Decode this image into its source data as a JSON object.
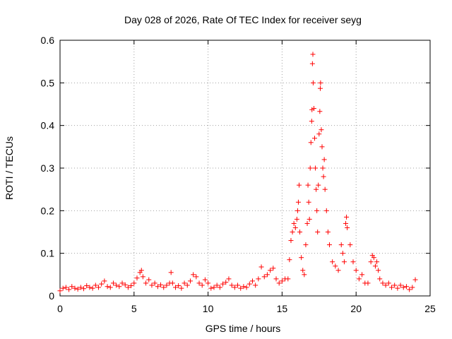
{
  "chart_data": {
    "type": "scatter",
    "title": "Day 028 of 2026, Rate Of TEC Index for receiver seyg",
    "xlabel": "GPS time / hours",
    "ylabel": "ROTI / TECUs",
    "xlim": [
      0,
      25
    ],
    "ylim": [
      0,
      0.6
    ],
    "x_ticks": [
      "0",
      "5",
      "10",
      "15",
      "20",
      "25"
    ],
    "y_ticks": [
      "0",
      "0.1",
      "0.2",
      "0.3",
      "0.4",
      "0.5",
      "0.6"
    ],
    "grid": true,
    "marker": "+",
    "color": "#ff0000",
    "series": [
      {
        "name": "ROTI",
        "points": [
          [
            0.0,
            0.012
          ],
          [
            0.2,
            0.018
          ],
          [
            0.4,
            0.02
          ],
          [
            0.6,
            0.015
          ],
          [
            0.8,
            0.022
          ],
          [
            1.0,
            0.018
          ],
          [
            1.2,
            0.016
          ],
          [
            1.4,
            0.02
          ],
          [
            1.6,
            0.017
          ],
          [
            1.8,
            0.024
          ],
          [
            2.0,
            0.02
          ],
          [
            2.2,
            0.018
          ],
          [
            2.4,
            0.025
          ],
          [
            2.6,
            0.02
          ],
          [
            2.8,
            0.028
          ],
          [
            3.0,
            0.035
          ],
          [
            3.2,
            0.022
          ],
          [
            3.4,
            0.02
          ],
          [
            3.6,
            0.03
          ],
          [
            3.8,
            0.025
          ],
          [
            4.0,
            0.022
          ],
          [
            4.2,
            0.03
          ],
          [
            4.4,
            0.026
          ],
          [
            4.6,
            0.02
          ],
          [
            4.8,
            0.024
          ],
          [
            5.0,
            0.03
          ],
          [
            5.2,
            0.042
          ],
          [
            5.4,
            0.055
          ],
          [
            5.5,
            0.06
          ],
          [
            5.6,
            0.045
          ],
          [
            5.8,
            0.03
          ],
          [
            6.0,
            0.038
          ],
          [
            6.2,
            0.025
          ],
          [
            6.4,
            0.03
          ],
          [
            6.6,
            0.022
          ],
          [
            6.8,
            0.026
          ],
          [
            7.0,
            0.02
          ],
          [
            7.2,
            0.025
          ],
          [
            7.4,
            0.03
          ],
          [
            7.5,
            0.055
          ],
          [
            7.6,
            0.03
          ],
          [
            7.8,
            0.02
          ],
          [
            8.0,
            0.024
          ],
          [
            8.2,
            0.018
          ],
          [
            8.4,
            0.03
          ],
          [
            8.6,
            0.025
          ],
          [
            8.8,
            0.035
          ],
          [
            9.0,
            0.05
          ],
          [
            9.2,
            0.045
          ],
          [
            9.4,
            0.03
          ],
          [
            9.6,
            0.025
          ],
          [
            9.8,
            0.038
          ],
          [
            10.0,
            0.03
          ],
          [
            10.2,
            0.018
          ],
          [
            10.4,
            0.02
          ],
          [
            10.6,
            0.025
          ],
          [
            10.8,
            0.02
          ],
          [
            11.0,
            0.028
          ],
          [
            11.2,
            0.032
          ],
          [
            11.4,
            0.04
          ],
          [
            11.6,
            0.025
          ],
          [
            11.8,
            0.02
          ],
          [
            12.0,
            0.025
          ],
          [
            12.2,
            0.018
          ],
          [
            12.4,
            0.022
          ],
          [
            12.6,
            0.02
          ],
          [
            12.8,
            0.028
          ],
          [
            13.0,
            0.035
          ],
          [
            13.2,
            0.025
          ],
          [
            13.4,
            0.04
          ],
          [
            13.6,
            0.068
          ],
          [
            13.8,
            0.045
          ],
          [
            14.0,
            0.05
          ],
          [
            14.2,
            0.06
          ],
          [
            14.4,
            0.065
          ],
          [
            14.6,
            0.04
          ],
          [
            14.8,
            0.03
          ],
          [
            15.0,
            0.035
          ],
          [
            15.2,
            0.04
          ],
          [
            15.4,
            0.04
          ],
          [
            15.5,
            0.085
          ],
          [
            15.6,
            0.13
          ],
          [
            15.7,
            0.15
          ],
          [
            15.8,
            0.17
          ],
          [
            15.9,
            0.16
          ],
          [
            16.0,
            0.18
          ],
          [
            16.05,
            0.2
          ],
          [
            16.1,
            0.22
          ],
          [
            16.15,
            0.26
          ],
          [
            16.2,
            0.15
          ],
          [
            16.3,
            0.09
          ],
          [
            16.4,
            0.06
          ],
          [
            16.5,
            0.05
          ],
          [
            16.6,
            0.12
          ],
          [
            16.7,
            0.17
          ],
          [
            16.75,
            0.26
          ],
          [
            16.8,
            0.22
          ],
          [
            16.85,
            0.18
          ],
          [
            16.9,
            0.3
          ],
          [
            16.95,
            0.36
          ],
          [
            17.0,
            0.41
          ],
          [
            17.02,
            0.437
          ],
          [
            17.05,
            0.545
          ],
          [
            17.08,
            0.567
          ],
          [
            17.1,
            0.5
          ],
          [
            17.15,
            0.44
          ],
          [
            17.2,
            0.37
          ],
          [
            17.25,
            0.3
          ],
          [
            17.3,
            0.25
          ],
          [
            17.35,
            0.2
          ],
          [
            17.4,
            0.15
          ],
          [
            17.45,
            0.26
          ],
          [
            17.5,
            0.38
          ],
          [
            17.55,
            0.433
          ],
          [
            17.58,
            0.487
          ],
          [
            17.6,
            0.5
          ],
          [
            17.65,
            0.39
          ],
          [
            17.7,
            0.35
          ],
          [
            17.75,
            0.3
          ],
          [
            17.8,
            0.28
          ],
          [
            17.85,
            0.32
          ],
          [
            17.9,
            0.25
          ],
          [
            18.0,
            0.2
          ],
          [
            18.1,
            0.15
          ],
          [
            18.2,
            0.12
          ],
          [
            18.4,
            0.08
          ],
          [
            18.6,
            0.07
          ],
          [
            18.8,
            0.06
          ],
          [
            19.0,
            0.12
          ],
          [
            19.1,
            0.1
          ],
          [
            19.2,
            0.08
          ],
          [
            19.3,
            0.17
          ],
          [
            19.35,
            0.185
          ],
          [
            19.4,
            0.16
          ],
          [
            19.6,
            0.12
          ],
          [
            19.8,
            0.08
          ],
          [
            20.0,
            0.06
          ],
          [
            20.2,
            0.04
          ],
          [
            20.4,
            0.05
          ],
          [
            20.6,
            0.03
          ],
          [
            20.8,
            0.03
          ],
          [
            21.0,
            0.08
          ],
          [
            21.1,
            0.095
          ],
          [
            21.2,
            0.09
          ],
          [
            21.3,
            0.07
          ],
          [
            21.4,
            0.08
          ],
          [
            21.5,
            0.06
          ],
          [
            21.6,
            0.04
          ],
          [
            21.8,
            0.03
          ],
          [
            22.0,
            0.025
          ],
          [
            22.2,
            0.03
          ],
          [
            22.4,
            0.02
          ],
          [
            22.6,
            0.025
          ],
          [
            22.8,
            0.018
          ],
          [
            23.0,
            0.025
          ],
          [
            23.2,
            0.02
          ],
          [
            23.4,
            0.022
          ],
          [
            23.6,
            0.015
          ],
          [
            23.8,
            0.02
          ],
          [
            24.0,
            0.038
          ]
        ]
      }
    ]
  }
}
